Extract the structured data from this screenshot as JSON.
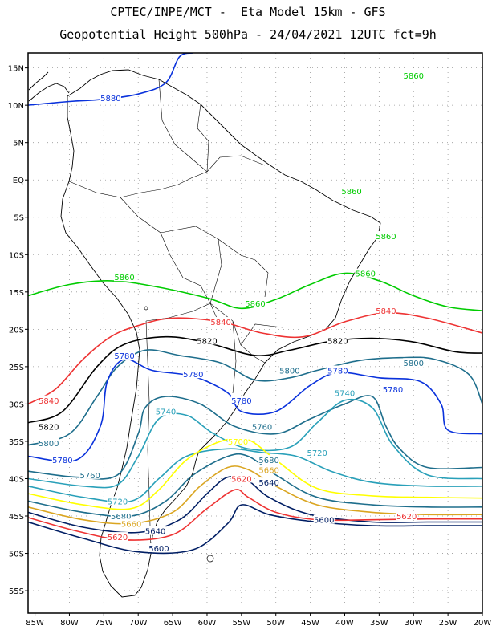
{
  "title": {
    "line1": "CPTEC/INPE/MCT -  Eta Model 15km - GFS",
    "line2": "Geopotential Height 500hPa - 24/04/2021 12UTC fct=9h"
  },
  "axes": {
    "lat_ticks": [
      {
        "lat": 15,
        "label": "15N"
      },
      {
        "lat": 10,
        "label": "10N"
      },
      {
        "lat": 5,
        "label": "5N"
      },
      {
        "lat": 0,
        "label": "EQ"
      },
      {
        "lat": -5,
        "label": "5S"
      },
      {
        "lat": -10,
        "label": "10S"
      },
      {
        "lat": -15,
        "label": "15S"
      },
      {
        "lat": -20,
        "label": "20S"
      },
      {
        "lat": -25,
        "label": "25S"
      },
      {
        "lat": -30,
        "label": "30S"
      },
      {
        "lat": -35,
        "label": "35S"
      },
      {
        "lat": -40,
        "label": "40S"
      },
      {
        "lat": -45,
        "label": "45S"
      },
      {
        "lat": -50,
        "label": "50S"
      },
      {
        "lat": -55,
        "label": "55S"
      }
    ],
    "lon_ticks": [
      {
        "lon": -85,
        "label": "85W"
      },
      {
        "lon": -80,
        "label": "80W"
      },
      {
        "lon": -75,
        "label": "75W"
      },
      {
        "lon": -70,
        "label": "70W"
      },
      {
        "lon": -65,
        "label": "65W"
      },
      {
        "lon": -60,
        "label": "60W"
      },
      {
        "lon": -55,
        "label": "55W"
      },
      {
        "lon": -50,
        "label": "50W"
      },
      {
        "lon": -45,
        "label": "45W"
      },
      {
        "lon": -40,
        "label": "40W"
      },
      {
        "lon": -35,
        "label": "35W"
      },
      {
        "lon": -30,
        "label": "30W"
      },
      {
        "lon": -25,
        "label": "25W"
      },
      {
        "lon": -20,
        "label": "20W"
      }
    ],
    "lon_range": [
      -86,
      -20
    ],
    "lat_range": [
      -58,
      17
    ],
    "grid": true
  },
  "contours": [
    {
      "value": "5880",
      "color": "#0a32dc",
      "labels": [
        [
          -74,
          11
        ]
      ],
      "points": [
        [
          -86,
          10
        ],
        [
          -80,
          10.5
        ],
        [
          -75,
          10.8
        ],
        [
          -70,
          11.5
        ],
        [
          -66,
          13
        ],
        [
          -64,
          16.5
        ],
        [
          -62,
          17
        ]
      ]
    },
    {
      "value": "5860",
      "color": "#00cc00",
      "labels": [
        [
          -30,
          14
        ],
        [
          -39,
          -1.5
        ],
        [
          -34,
          -7.5
        ],
        [
          -37,
          -12.5
        ],
        [
          -72,
          -13
        ],
        [
          -53,
          -16.5
        ]
      ],
      "points": [
        [
          -86,
          -15.5
        ],
        [
          -80,
          -14
        ],
        [
          -74,
          -13.5
        ],
        [
          -68,
          -14.2
        ],
        [
          -60,
          -15.8
        ],
        [
          -55,
          -17.2
        ],
        [
          -50,
          -16
        ],
        [
          -45,
          -14
        ],
        [
          -40,
          -12.5
        ],
        [
          -35,
          -13.5
        ],
        [
          -30,
          -15.5
        ],
        [
          -25,
          -17
        ],
        [
          -20,
          -17.5
        ]
      ]
    },
    {
      "value": "5840",
      "color": "#ee3333",
      "labels": [
        [
          -83,
          -29.5
        ],
        [
          -58,
          -19
        ],
        [
          -34,
          -17.5
        ]
      ],
      "points": [
        [
          -86,
          -30
        ],
        [
          -82,
          -28
        ],
        [
          -78,
          -24
        ],
        [
          -74,
          -21
        ],
        [
          -70,
          -19.5
        ],
        [
          -65,
          -18.5
        ],
        [
          -58,
          -19
        ],
        [
          -52,
          -20.5
        ],
        [
          -46,
          -21
        ],
        [
          -40,
          -19
        ],
        [
          -34,
          -17.8
        ],
        [
          -28,
          -18.5
        ],
        [
          -20,
          -20.5
        ]
      ]
    },
    {
      "value": "5820",
      "color": "#000000",
      "labels": [
        [
          -83,
          -33
        ],
        [
          -60,
          -21.5
        ],
        [
          -41,
          -21.5
        ]
      ],
      "points": [
        [
          -86,
          -32.5
        ],
        [
          -81,
          -31
        ],
        [
          -76,
          -25
        ],
        [
          -72,
          -22
        ],
        [
          -66,
          -21
        ],
        [
          -60,
          -21.8
        ],
        [
          -53,
          -23.5
        ],
        [
          -48,
          -22.8
        ],
        [
          -42,
          -21.6
        ],
        [
          -36,
          -21.2
        ],
        [
          -30,
          -21.7
        ],
        [
          -24,
          -23
        ],
        [
          -20,
          -23.2
        ]
      ]
    },
    {
      "value": "5800",
      "color": "#1e6e8c",
      "labels": [
        [
          -83,
          -35.2
        ],
        [
          -48,
          -25.5
        ],
        [
          -30,
          -24.5
        ]
      ],
      "points": [
        [
          -86,
          -35.5
        ],
        [
          -80,
          -34
        ],
        [
          -76,
          -29
        ],
        [
          -73,
          -25
        ],
        [
          -69,
          -22.8
        ],
        [
          -64,
          -23.5
        ],
        [
          -58,
          -24.5
        ],
        [
          -53,
          -26.8
        ],
        [
          -48,
          -26.5
        ],
        [
          -44,
          -25.5
        ],
        [
          -38,
          -24.2
        ],
        [
          -32,
          -23.8
        ],
        [
          -27,
          -24
        ],
        [
          -22,
          -26
        ],
        [
          -20,
          -30
        ]
      ]
    },
    {
      "value": "5780",
      "color": "#0a32dc",
      "labels": [
        [
          -81,
          -37.5
        ],
        [
          -72,
          -23.5
        ],
        [
          -62,
          -26
        ],
        [
          -55,
          -29.5
        ],
        [
          -41,
          -25.5
        ],
        [
          -33,
          -28
        ]
      ],
      "points": [
        [
          -86,
          -37
        ],
        [
          -79,
          -37.5
        ],
        [
          -75.5,
          -33
        ],
        [
          -74.5,
          -27
        ],
        [
          -72,
          -24
        ],
        [
          -68,
          -25.5
        ],
        [
          -62,
          -26.3
        ],
        [
          -57,
          -28.5
        ],
        [
          -55,
          -31
        ],
        [
          -50,
          -31
        ],
        [
          -45,
          -27.5
        ],
        [
          -41,
          -25.8
        ],
        [
          -35,
          -26.5
        ],
        [
          -29,
          -27
        ],
        [
          -26,
          -30
        ],
        [
          -25,
          -33.5
        ],
        [
          -20,
          -34
        ]
      ]
    },
    {
      "value": "5760",
      "color": "#1e6e8c",
      "labels": [
        [
          -77,
          -39.5
        ],
        [
          -52,
          -33
        ]
      ],
      "points": [
        [
          -86,
          -39
        ],
        [
          -79,
          -39.8
        ],
        [
          -73,
          -39.5
        ],
        [
          -70,
          -34
        ],
        [
          -69,
          -30.5
        ],
        [
          -66,
          -29
        ],
        [
          -61,
          -30
        ],
        [
          -56,
          -33
        ],
        [
          -50,
          -34
        ],
        [
          -45,
          -32
        ],
        [
          -40,
          -30
        ],
        [
          -36,
          -29
        ],
        [
          -34,
          -33
        ],
        [
          -32,
          -36
        ],
        [
          -28,
          -38.5
        ],
        [
          -20,
          -38.5
        ]
      ]
    },
    {
      "value": "5740",
      "color": "#29a0b9",
      "labels": [
        [
          -66,
          -31
        ],
        [
          -40,
          -28.5
        ]
      ],
      "points": [
        [
          -86,
          -40
        ],
        [
          -78,
          -41
        ],
        [
          -73,
          -40.8
        ],
        [
          -70,
          -37
        ],
        [
          -67,
          -32
        ],
        [
          -63,
          -31.5
        ],
        [
          -59,
          -34
        ],
        [
          -54,
          -36
        ],
        [
          -48,
          -35.8
        ],
        [
          -44,
          -32.5
        ],
        [
          -40,
          -29.5
        ],
        [
          -36,
          -30.5
        ],
        [
          -33,
          -35.5
        ],
        [
          -28,
          -39.5
        ],
        [
          -20,
          -40
        ]
      ]
    },
    {
      "value": "5720",
      "color": "#29a0b9",
      "labels": [
        [
          -73,
          -43
        ],
        [
          -44,
          -36.5
        ]
      ],
      "points": [
        [
          -86,
          -41
        ],
        [
          -78,
          -42.5
        ],
        [
          -71,
          -43
        ],
        [
          -67,
          -40
        ],
        [
          -63,
          -37
        ],
        [
          -57,
          -36
        ],
        [
          -52,
          -36.5
        ],
        [
          -47,
          -37
        ],
        [
          -42,
          -39
        ],
        [
          -36,
          -40.5
        ],
        [
          -28,
          -41
        ],
        [
          -20,
          -41
        ]
      ]
    },
    {
      "value": "5700",
      "color": "#ffff00",
      "labels": [
        [
          -55.5,
          -35
        ]
      ],
      "points": [
        [
          -86,
          -42
        ],
        [
          -78,
          -43.5
        ],
        [
          -71,
          -44
        ],
        [
          -67,
          -41.5
        ],
        [
          -63,
          -37.5
        ],
        [
          -58,
          -35
        ],
        [
          -54,
          -34.8
        ],
        [
          -50,
          -37.5
        ],
        [
          -44,
          -41.3
        ],
        [
          -36,
          -42.3
        ],
        [
          -28,
          -42.5
        ],
        [
          -20,
          -42.6
        ]
      ]
    },
    {
      "value": "5680",
      "color": "#1e6e8c",
      "labels": [
        [
          -72.5,
          -45
        ],
        [
          -51,
          -37.5
        ]
      ],
      "points": [
        [
          -86,
          -43
        ],
        [
          -78,
          -44.5
        ],
        [
          -71,
          -45
        ],
        [
          -66,
          -43
        ],
        [
          -62,
          -39.5
        ],
        [
          -57,
          -37
        ],
        [
          -54,
          -37
        ],
        [
          -50,
          -39.5
        ],
        [
          -44,
          -42.5
        ],
        [
          -36,
          -43.5
        ],
        [
          -28,
          -43.8
        ],
        [
          -20,
          -43.8
        ]
      ]
    },
    {
      "value": "5660",
      "color": "#daa520",
      "labels": [
        [
          -71,
          -46
        ],
        [
          -51,
          -38.8
        ]
      ],
      "points": [
        [
          -86,
          -43.8
        ],
        [
          -78,
          -45.5
        ],
        [
          -71,
          -46
        ],
        [
          -65,
          -44.5
        ],
        [
          -61,
          -41
        ],
        [
          -57,
          -38.5
        ],
        [
          -54,
          -38.8
        ],
        [
          -50,
          -41
        ],
        [
          -44,
          -43.5
        ],
        [
          -36,
          -44.5
        ],
        [
          -28,
          -44.8
        ],
        [
          -20,
          -44.8
        ]
      ]
    },
    {
      "value": "5640",
      "color": "#001e64",
      "labels": [
        [
          -67.5,
          -47
        ],
        [
          -51,
          -40.5
        ]
      ],
      "points": [
        [
          -86,
          -44.5
        ],
        [
          -78,
          -46.5
        ],
        [
          -70,
          -47.2
        ],
        [
          -64,
          -45.5
        ],
        [
          -60,
          -42
        ],
        [
          -57,
          -39.8
        ],
        [
          -54,
          -40.3
        ],
        [
          -51,
          -42.5
        ],
        [
          -45,
          -44.8
        ],
        [
          -36,
          -45.8
        ],
        [
          -28,
          -45.8
        ],
        [
          -20,
          -45.8
        ]
      ]
    },
    {
      "value": "5620",
      "color": "#ee3333",
      "labels": [
        [
          -73,
          -47.8
        ],
        [
          -55,
          -40
        ],
        [
          -31,
          -45
        ]
      ],
      "points": [
        [
          -86,
          -45.2
        ],
        [
          -79,
          -47
        ],
        [
          -72,
          -48.2
        ],
        [
          -65,
          -47.5
        ],
        [
          -60,
          -44
        ],
        [
          -56,
          -41.5
        ],
        [
          -54,
          -42.5
        ],
        [
          -50,
          -44.5
        ],
        [
          -44,
          -45.5
        ],
        [
          -36,
          -45.5
        ],
        [
          -28,
          -45.4
        ],
        [
          -20,
          -45.4
        ]
      ]
    },
    {
      "value": "5600",
      "color": "#001e64",
      "labels": [
        [
          -67,
          -49.3
        ],
        [
          -43,
          -45.5
        ]
      ],
      "points": [
        [
          -86,
          -45.8
        ],
        [
          -78,
          -48
        ],
        [
          -70,
          -49.8
        ],
        [
          -62,
          -49.5
        ],
        [
          -57,
          -46
        ],
        [
          -55,
          -43.5
        ],
        [
          -51,
          -44.8
        ],
        [
          -45,
          -45.7
        ],
        [
          -36,
          -46.3
        ],
        [
          -28,
          -46.3
        ],
        [
          -20,
          -46.3
        ]
      ]
    }
  ],
  "colors": {
    "frame": "#000000",
    "grid": "#999999",
    "coast": "#000000",
    "background": "#ffffff"
  }
}
